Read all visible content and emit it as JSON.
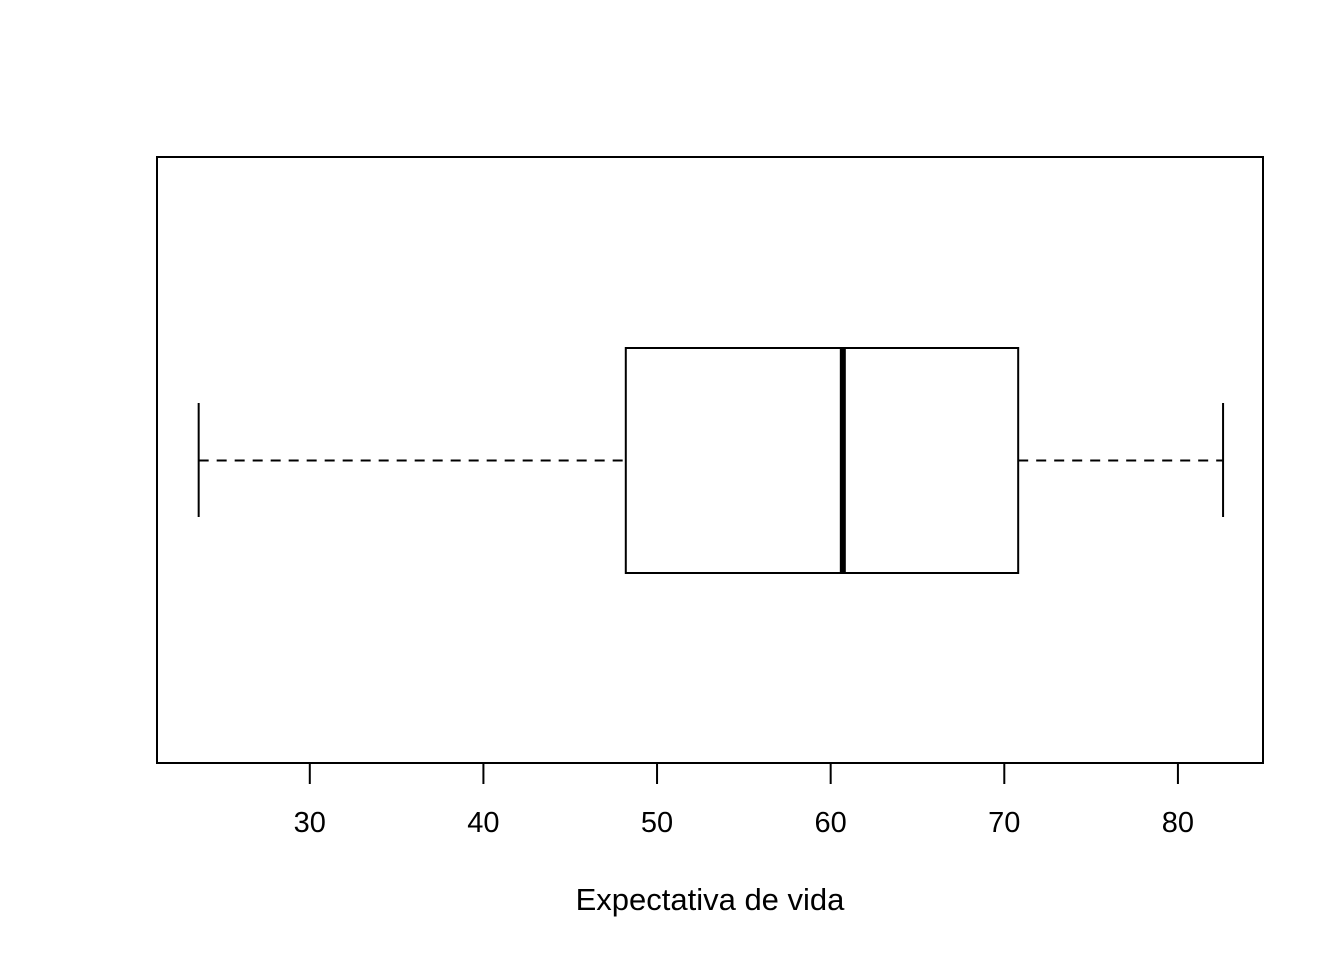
{
  "chart_data": {
    "type": "boxplot",
    "orientation": "horizontal",
    "xlabel": "Expectativa de vida",
    "xlim": [
      21.2,
      84.9
    ],
    "x_ticks": [
      30,
      40,
      50,
      60,
      70,
      80
    ],
    "x_tick_labels": [
      "30",
      "40",
      "50",
      "60",
      "70",
      "80"
    ],
    "box": {
      "whisker_low": 23.6,
      "q1": 48.2,
      "median": 60.7,
      "q3": 70.8,
      "whisker_high": 82.6
    },
    "grid": false,
    "colors": {
      "stroke": "#000000",
      "box_fill": "#ffffff",
      "background": "#ffffff"
    }
  }
}
